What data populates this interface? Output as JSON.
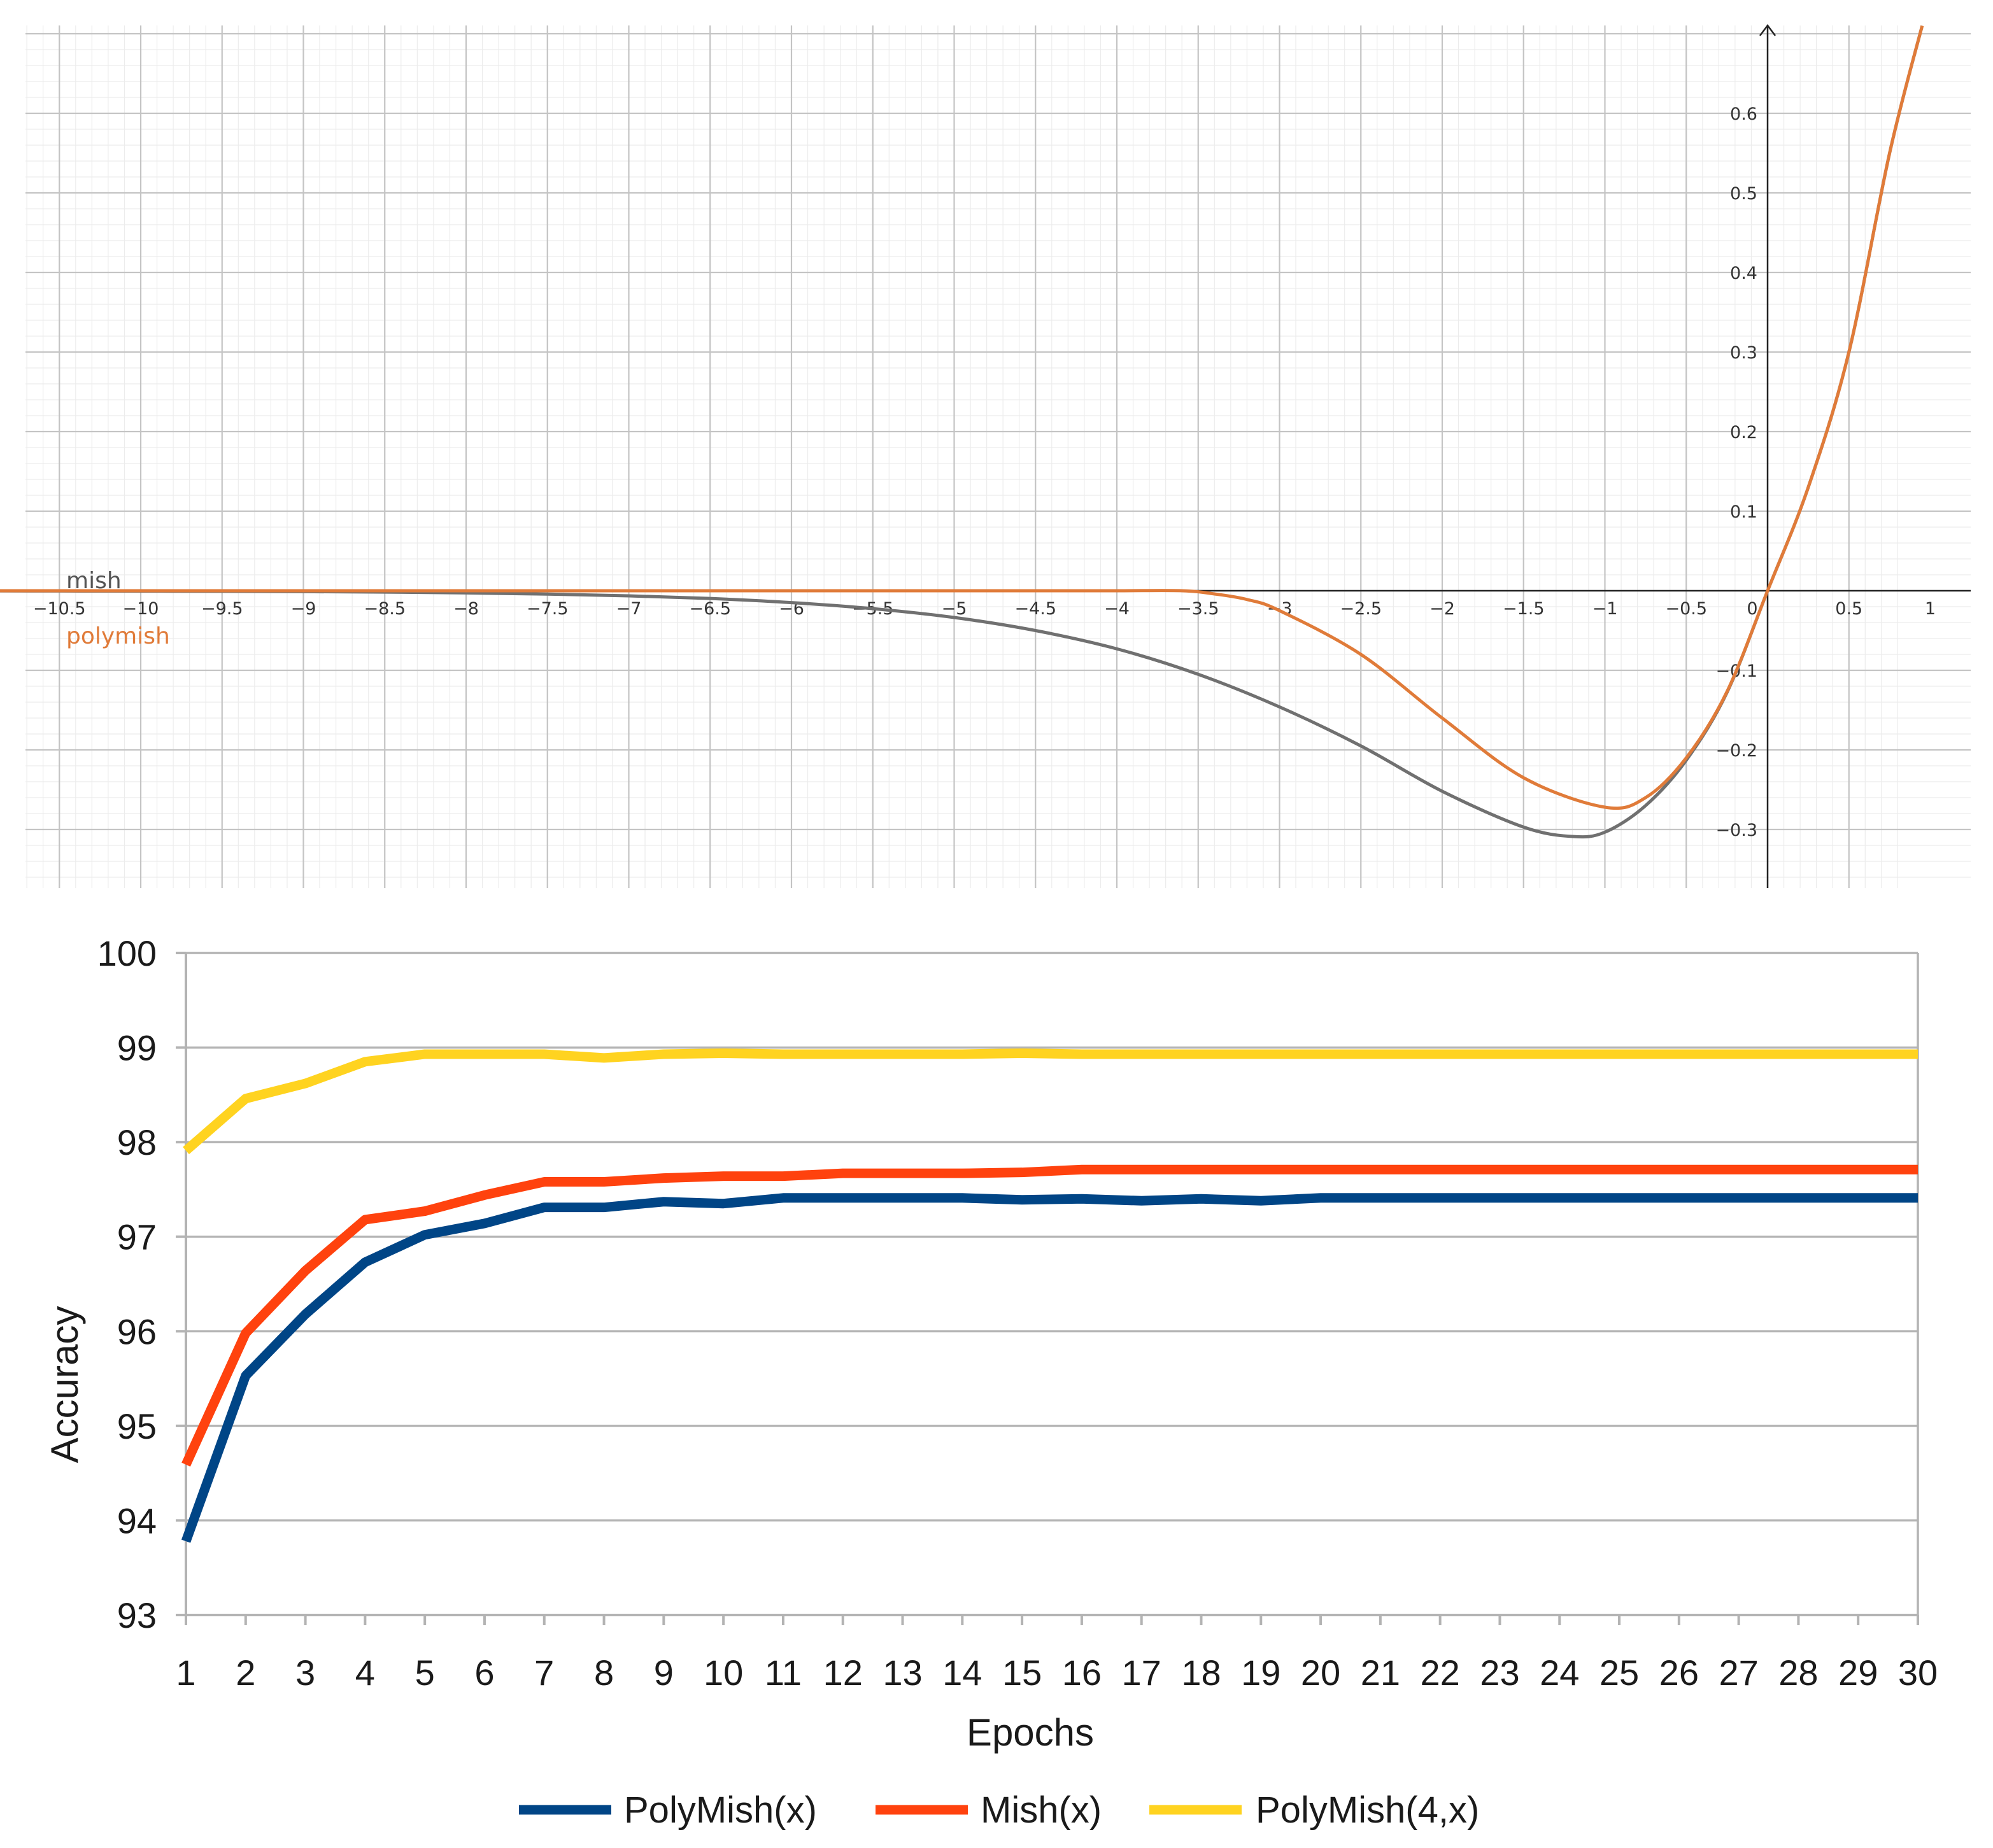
{
  "chart_data": [
    {
      "type": "line",
      "title": "",
      "xlabel": "",
      "ylabel": "",
      "xlim": [
        -11.0,
        1.3
      ],
      "ylim": [
        -0.37,
        0.71
      ],
      "x_ticks": [
        "−10.5",
        "−10",
        "−9.5",
        "−9",
        "−8.5",
        "−8",
        "−7.5",
        "−7",
        "−6.5",
        "−6",
        "−5.5",
        "−5",
        "−4.5",
        "−4",
        "−3.5",
        "−3",
        "−2.5",
        "−2",
        "−1.5",
        "−1",
        "−0.5",
        "0",
        "0.5",
        "1"
      ],
      "y_ticks": [
        "0.6",
        "0.5",
        "0.4",
        "0.3",
        "0.2",
        "0.1",
        "−0.1",
        "−0.2",
        "−0.3"
      ],
      "grid": true,
      "series": [
        {
          "name": "mish",
          "color": "#707070",
          "x": [
            -11.0,
            -10.5,
            -10,
            -9.5,
            -9,
            -8.5,
            -8,
            -7.5,
            -7,
            -6.5,
            -6,
            -5.5,
            -5,
            -4.5,
            -4,
            -3.5,
            -3,
            -2.5,
            -2,
            -1.5,
            -1.2,
            -1,
            -0.75,
            -0.5,
            -0.25,
            0,
            0.25,
            0.5,
            0.75,
            0.95
          ],
          "y": [
            -0.0002,
            -0.0003,
            -0.0005,
            -0.0007,
            -0.0011,
            -0.0017,
            -0.0027,
            -0.0042,
            -0.0064,
            -0.0097,
            -0.0149,
            -0.0225,
            -0.0336,
            -0.05,
            -0.073,
            -0.105,
            -0.146,
            -0.195,
            -0.252,
            -0.297,
            -0.3088,
            -0.3034,
            -0.27,
            -0.213,
            -0.128,
            0.0,
            0.13,
            0.3,
            0.55,
            0.71
          ]
        },
        {
          "name": "polymish",
          "color": "#e07b39",
          "x": [
            -11.0,
            -5,
            -4.5,
            -4,
            -3.6,
            -3.4,
            -3.2,
            -3,
            -2.5,
            -2,
            -1.5,
            -1,
            -0.75,
            -0.5,
            -0.25,
            0,
            0.25,
            0.5,
            0.75,
            0.95
          ],
          "y": [
            0,
            0,
            0,
            0,
            0,
            -0.004,
            -0.011,
            -0.025,
            -0.08,
            -0.16,
            -0.235,
            -0.272,
            -0.26,
            -0.21,
            -0.127,
            0.0,
            0.13,
            0.3,
            0.55,
            0.71
          ]
        }
      ]
    },
    {
      "type": "line",
      "title": "",
      "xlabel": "Epochs",
      "ylabel": "Accuracy",
      "ylim": [
        93,
        100
      ],
      "y_ticks": [
        93,
        94,
        95,
        96,
        97,
        98,
        99,
        100
      ],
      "grid": true,
      "legend": "bottom",
      "categories": [
        "1",
        "2",
        "3",
        "4",
        "5",
        "6",
        "7",
        "8",
        "9",
        "10",
        "11",
        "12",
        "13",
        "14",
        "15",
        "16",
        "17",
        "18",
        "19",
        "20",
        "21",
        "22",
        "23",
        "24",
        "25",
        "26",
        "27",
        "28",
        "29",
        "30"
      ],
      "series": [
        {
          "name": "PolyMish(x)",
          "color": "#004586",
          "values": [
            93.78,
            95.53,
            96.18,
            96.73,
            97.02,
            97.14,
            97.31,
            97.31,
            97.37,
            97.35,
            97.41,
            97.41,
            97.41,
            97.41,
            97.39,
            97.4,
            97.38,
            97.4,
            97.38,
            97.41,
            97.41,
            97.41,
            97.41,
            97.41,
            97.41,
            97.41,
            97.41,
            97.41,
            97.41,
            97.41
          ]
        },
        {
          "name": "Mish(x)",
          "color": "#ff420e",
          "values": [
            94.59,
            95.98,
            96.64,
            97.18,
            97.27,
            97.44,
            97.58,
            97.58,
            97.62,
            97.64,
            97.64,
            97.67,
            97.67,
            97.67,
            97.68,
            97.71,
            97.71,
            97.71,
            97.71,
            97.71,
            97.71,
            97.71,
            97.71,
            97.71,
            97.71,
            97.71,
            97.71,
            97.71,
            97.71,
            97.71
          ]
        },
        {
          "name": "PolyMish(4,x)",
          "color": "#ffd320",
          "values": [
            97.91,
            98.46,
            98.62,
            98.85,
            98.93,
            98.93,
            98.93,
            98.89,
            98.93,
            98.94,
            98.93,
            98.93,
            98.93,
            98.93,
            98.94,
            98.93,
            98.93,
            98.93,
            98.93,
            98.93,
            98.93,
            98.93,
            98.93,
            98.93,
            98.93,
            98.93,
            98.93,
            98.93,
            98.93,
            98.93
          ]
        }
      ]
    }
  ]
}
